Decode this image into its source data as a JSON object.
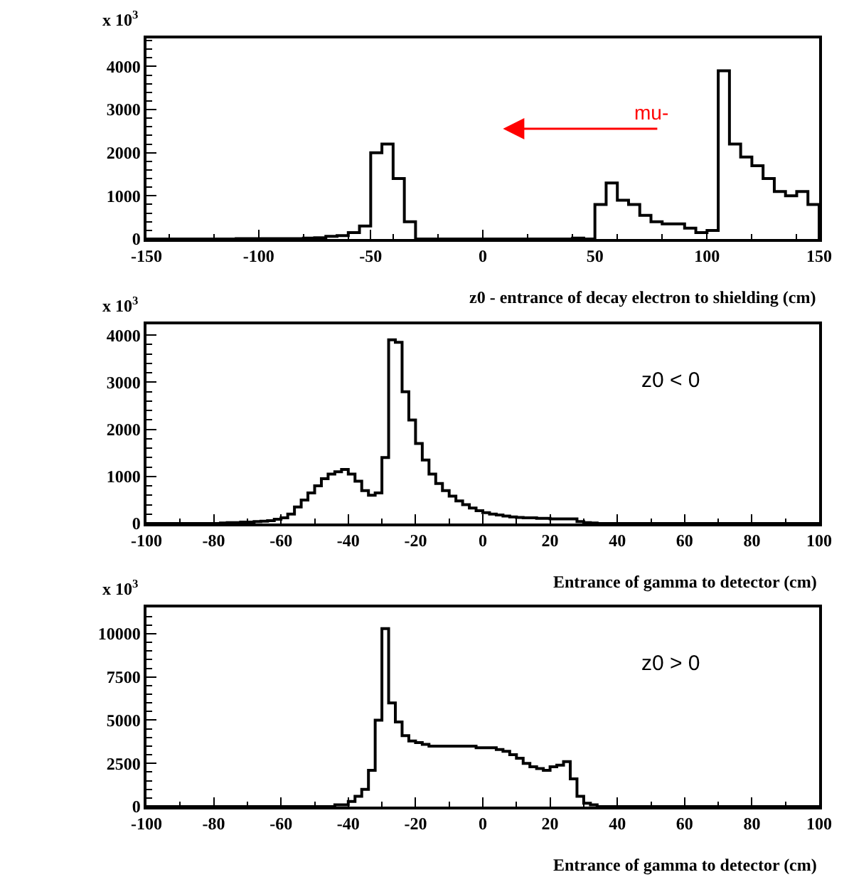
{
  "chart_data": [
    {
      "type": "histogram",
      "xlabel": "z0 - entrance of decay electron to shielding (cm)",
      "annotations": [
        "x 10$^{3}$",
        "mu-"
      ],
      "bins": [
        -150,
        -145,
        -140,
        -135,
        -130,
        -125,
        -120,
        -115,
        -110,
        -105,
        -100,
        -95,
        -90,
        -85,
        -80,
        -75,
        -70,
        -65,
        -60,
        -55,
        -50,
        -45,
        -40,
        -35,
        -30,
        -25,
        -20,
        -15,
        -10,
        -5,
        0,
        5,
        10,
        15,
        20,
        25,
        30,
        35,
        40,
        45,
        50,
        55,
        60,
        65,
        70,
        75,
        80,
        85,
        90,
        95,
        100,
        105,
        110,
        115,
        120,
        125,
        130,
        135,
        140,
        145,
        150
      ],
      "values": [
        0,
        0,
        0,
        0,
        0,
        0,
        0,
        0,
        10,
        10,
        10,
        10,
        10,
        10,
        20,
        30,
        60,
        80,
        150,
        300,
        2000,
        2200,
        1400,
        400,
        0,
        0,
        0,
        0,
        0,
        0,
        0,
        0,
        0,
        0,
        0,
        0,
        0,
        0,
        20,
        0,
        800,
        1300,
        900,
        800,
        550,
        400,
        350,
        350,
        250,
        150,
        200,
        3900,
        2200,
        1900,
        1700,
        1400,
        1100,
        1000,
        1100,
        800
      ],
      "color": "#000000",
      "xlim": [
        -150,
        150
      ],
      "xticks": [
        -150,
        -100,
        -50,
        0,
        50,
        100,
        150
      ],
      "ylim": [
        0,
        4650
      ],
      "yticks": [
        0,
        1000,
        2000,
        3000,
        4000
      ]
    },
    {
      "type": "histogram",
      "xlabel": "Entrance of gamma to detector (cm)",
      "annotations": [
        "x 10$^{3}$",
        "z0 < 0"
      ],
      "bins": [
        -100,
        -98,
        -96,
        -94,
        -92,
        -90,
        -88,
        -86,
        -84,
        -82,
        -80,
        -78,
        -76,
        -74,
        -72,
        -70,
        -68,
        -66,
        -64,
        -62,
        -60,
        -58,
        -56,
        -54,
        -52,
        -50,
        -48,
        -46,
        -44,
        -42,
        -40,
        -38,
        -36,
        -34,
        -32,
        -30,
        -28,
        -26,
        -24,
        -22,
        -20,
        -18,
        -16,
        -14,
        -12,
        -10,
        -8,
        -6,
        -4,
        -2,
        0,
        2,
        4,
        6,
        8,
        10,
        12,
        14,
        16,
        18,
        20,
        22,
        24,
        26,
        28,
        30,
        32,
        34,
        36,
        38,
        40,
        42,
        44,
        46,
        48,
        50,
        52,
        54,
        56,
        58,
        60,
        62,
        64,
        66,
        68,
        70,
        72,
        74,
        76,
        78,
        80,
        82,
        84,
        86,
        88,
        90,
        92,
        94,
        96,
        98,
        100
      ],
      "values": [
        0,
        0,
        0,
        0,
        0,
        0,
        0,
        0,
        0,
        0,
        0,
        10,
        20,
        20,
        30,
        30,
        40,
        50,
        60,
        90,
        120,
        200,
        350,
        500,
        650,
        800,
        950,
        1050,
        1100,
        1150,
        1050,
        900,
        700,
        600,
        650,
        1400,
        3900,
        3850,
        2800,
        2200,
        1700,
        1350,
        1050,
        850,
        700,
        580,
        480,
        400,
        330,
        270,
        230,
        200,
        180,
        160,
        140,
        130,
        120,
        120,
        110,
        110,
        100,
        100,
        100,
        100,
        40,
        20,
        10,
        0,
        0,
        0,
        0,
        0,
        0,
        0,
        0,
        0,
        0,
        0,
        0,
        0,
        0,
        0,
        0,
        0,
        0,
        0,
        0,
        0,
        0,
        0,
        0,
        0,
        0,
        0,
        0,
        0,
        0,
        0,
        0,
        0
      ],
      "color": "#000000",
      "xlim": [
        -100,
        100
      ],
      "xticks": [
        -100,
        -80,
        -60,
        -40,
        -20,
        0,
        20,
        40,
        60,
        80,
        100
      ],
      "ylim": [
        0,
        4230
      ],
      "yticks": [
        0,
        1000,
        2000,
        3000,
        4000
      ]
    },
    {
      "type": "histogram",
      "xlabel": "Entrance of gamma to detector (cm)",
      "annotations": [
        "x 10$^{3}$",
        "z0 > 0"
      ],
      "bins": [
        -100,
        -98,
        -96,
        -94,
        -92,
        -90,
        -88,
        -86,
        -84,
        -82,
        -80,
        -78,
        -76,
        -74,
        -72,
        -70,
        -68,
        -66,
        -64,
        -62,
        -60,
        -58,
        -56,
        -54,
        -52,
        -50,
        -48,
        -46,
        -44,
        -42,
        -40,
        -38,
        -36,
        -34,
        -32,
        -30,
        -28,
        -26,
        -24,
        -22,
        -20,
        -18,
        -16,
        -14,
        -12,
        -10,
        -8,
        -6,
        -4,
        -2,
        0,
        2,
        4,
        6,
        8,
        10,
        12,
        14,
        16,
        18,
        20,
        22,
        24,
        26,
        28,
        30,
        32,
        34,
        36,
        38,
        40,
        42,
        44,
        46,
        48,
        50,
        52,
        54,
        56,
        58,
        60,
        62,
        64,
        66,
        68,
        70,
        72,
        74,
        76,
        78,
        80,
        82,
        84,
        86,
        88,
        90,
        92,
        94,
        96,
        98,
        100
      ],
      "values": [
        0,
        0,
        0,
        0,
        0,
        0,
        0,
        0,
        0,
        0,
        0,
        0,
        0,
        0,
        0,
        0,
        0,
        0,
        0,
        0,
        0,
        0,
        0,
        0,
        0,
        0,
        0,
        0,
        100,
        100,
        300,
        600,
        1000,
        2100,
        5000,
        10300,
        6000,
        4900,
        4100,
        3800,
        3700,
        3600,
        3500,
        3500,
        3500,
        3500,
        3500,
        3500,
        3500,
        3400,
        3400,
        3400,
        3300,
        3200,
        3000,
        2800,
        2500,
        2300,
        2200,
        2100,
        2300,
        2400,
        2600,
        1600,
        600,
        200,
        100,
        0,
        0,
        0,
        0,
        0,
        0,
        0,
        0,
        0,
        0,
        0,
        0,
        0,
        0,
        0,
        0,
        0,
        0,
        0,
        0,
        0,
        0,
        0,
        0,
        0,
        0,
        0,
        0,
        0,
        0,
        0,
        0,
        0
      ],
      "color": "#000000",
      "xlim": [
        -100,
        100
      ],
      "xticks": [
        -100,
        -80,
        -60,
        -40,
        -20,
        0,
        20,
        40,
        60,
        80,
        100
      ],
      "ylim": [
        0,
        11520
      ],
      "yticks": [
        0,
        2500,
        5000,
        7500,
        10000
      ]
    }
  ]
}
